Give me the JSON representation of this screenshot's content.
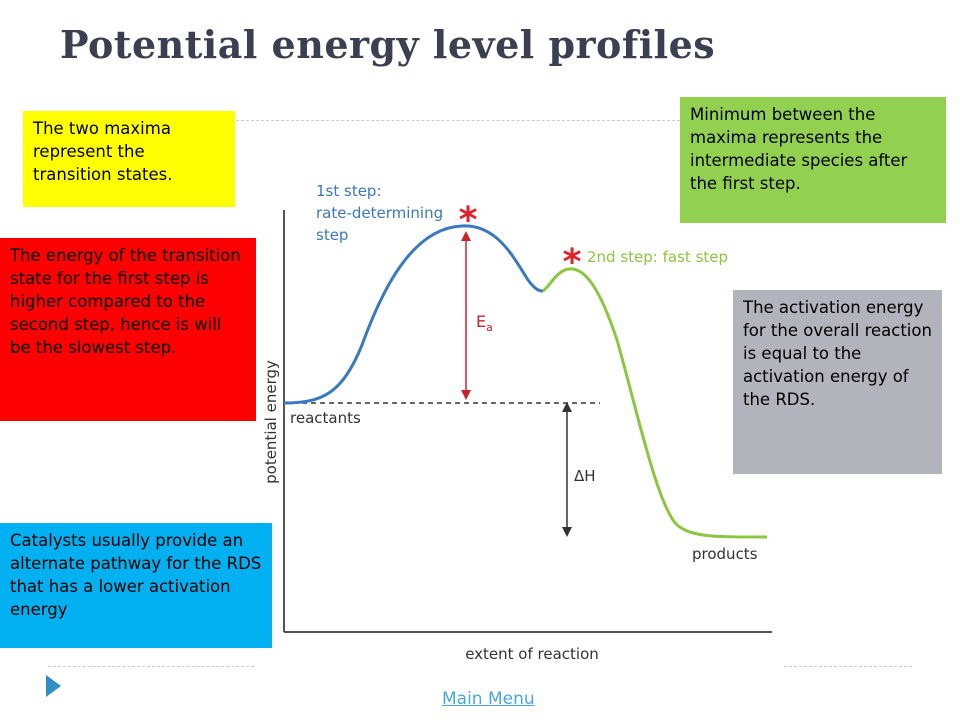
{
  "title": "Potential energy level profiles",
  "callouts": {
    "transition_states": "The two maxima represent the transition states.",
    "intermediate": "Minimum between the maxima represents the intermediate species after the first step.",
    "first_step_energy": "The energy of the transition state for the first step is higher compared to the second step, hence is will be the slowest step.",
    "overall_activation": "The activation energy for the overall reaction is equal to the activation energy of the RDS.",
    "catalysts": "Catalysts usually provide an alternate pathway for the RDS that has a lower activation energy"
  },
  "diagram": {
    "y_axis_label": "potential energy",
    "x_axis_label": "extent of reaction",
    "step1_line1": "1st step:",
    "step1_line2": "rate-determining",
    "step1_line3": "step",
    "step2_label": "2nd step: fast step",
    "reactants_label": "reactants",
    "products_label": "products",
    "ea_label_main": "E",
    "ea_label_sub": "a",
    "dh_label": "ΔH",
    "asterisk": "*"
  },
  "colors": {
    "step1_curve": "#3a78c0",
    "step2_curve": "#8cc63e",
    "ea_arrow": "#c8232c",
    "asterisk": "#e0202a"
  },
  "footer": {
    "main_menu": "Main Menu"
  }
}
